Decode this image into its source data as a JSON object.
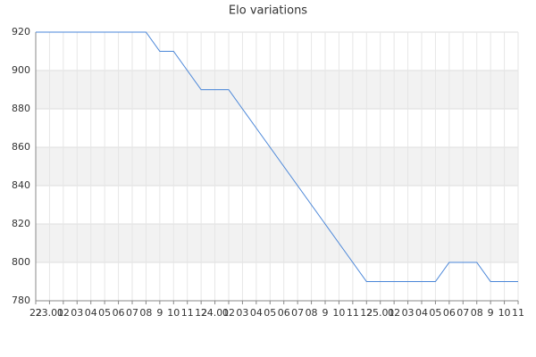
{
  "chart_data": {
    "type": "line",
    "title": "Elo variations",
    "categories": [
      "22",
      "23.01",
      "02",
      "03",
      "04",
      "05",
      "06",
      "07",
      "08",
      "9",
      "10",
      "11",
      "12",
      "24.01",
      "02",
      "03",
      "04",
      "05",
      "06",
      "07",
      "08",
      "9",
      "10",
      "11",
      "12",
      "25.01",
      "02",
      "03",
      "04",
      "05",
      "06",
      "07",
      "08",
      "9",
      "10",
      "11"
    ],
    "series": [
      {
        "name": "Elo",
        "color": "#4a86d8",
        "values": [
          920,
          920,
          920,
          920,
          920,
          920,
          920,
          920,
          920,
          910,
          910,
          900,
          890,
          890,
          890,
          880,
          870,
          860,
          850,
          840,
          830,
          820,
          810,
          800,
          790,
          790,
          790,
          790,
          790,
          790,
          800,
          800,
          800,
          790,
          790,
          790
        ]
      }
    ],
    "ylim": [
      780,
      920
    ],
    "yticks": [
      780,
      800,
      820,
      840,
      860,
      880,
      900,
      920
    ],
    "grid": true,
    "band_color": "#f2f2f2"
  }
}
